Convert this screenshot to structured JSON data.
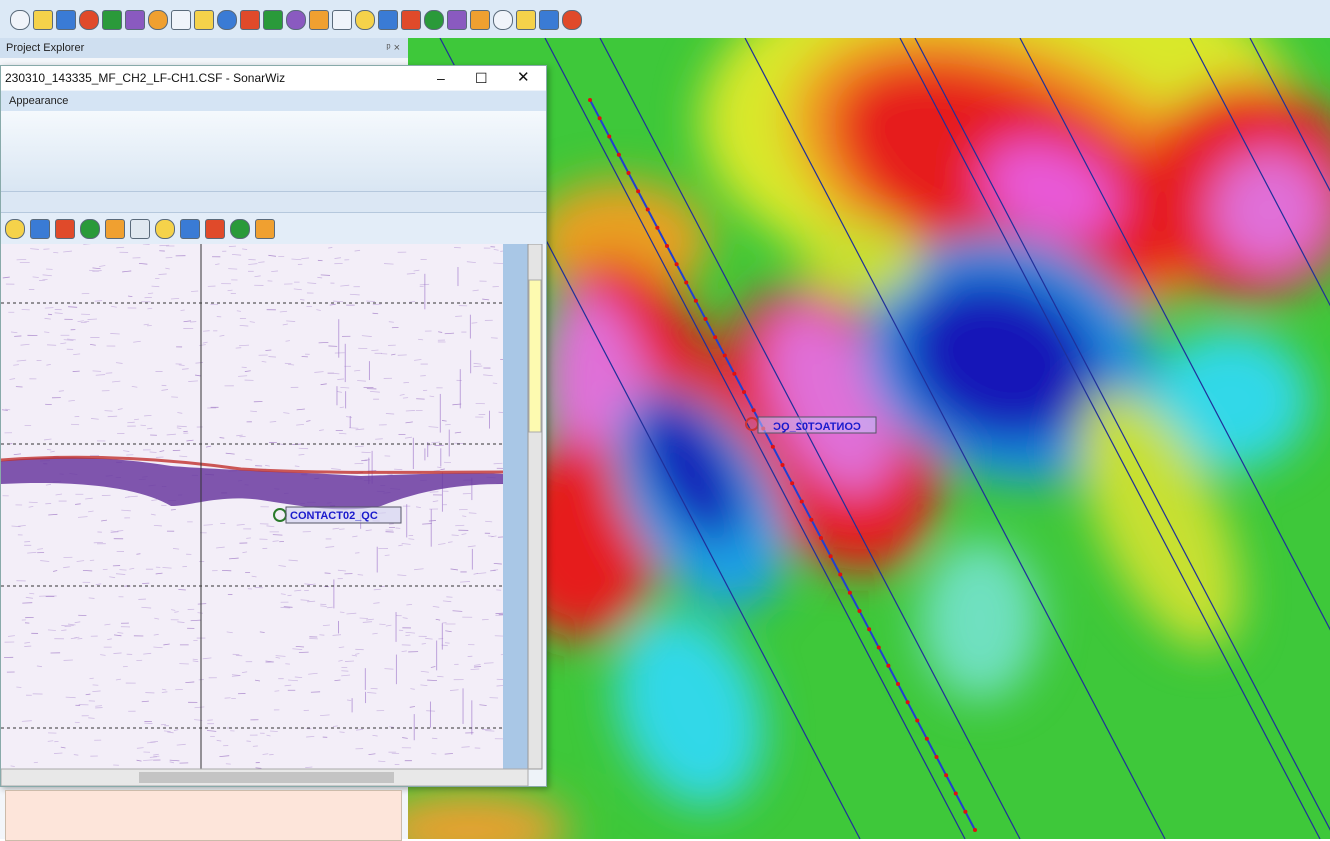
{
  "project_explorer": {
    "title": "Project Explorer"
  },
  "sonar_window": {
    "title": "230310_143335_MF_CH2_LF-CH1.CSF - SonarWiz",
    "menu": "Appearance",
    "contact_label": "CONTACT02_QC"
  },
  "map": {
    "contact_label": "CONTACT02_QC"
  }
}
